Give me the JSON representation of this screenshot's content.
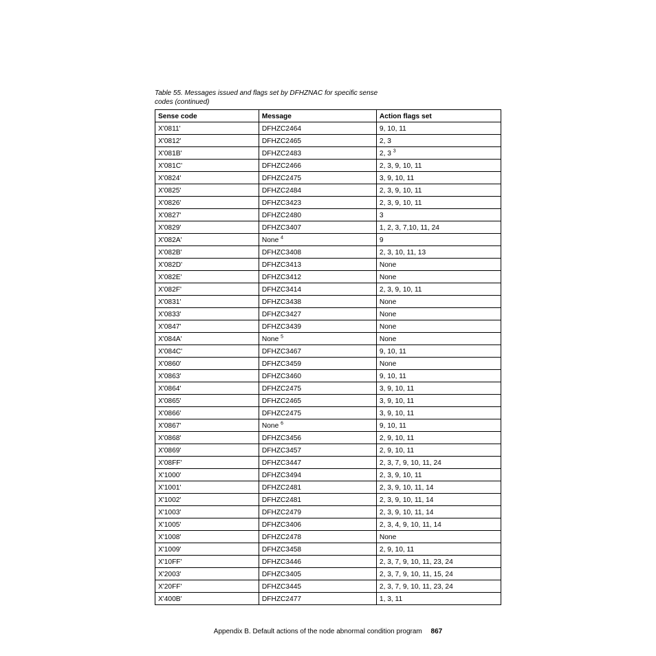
{
  "caption_line1": "Table 55. Messages issued and flags set by DFHZNAC for specific sense",
  "caption_line2": "codes (continued)",
  "headers": {
    "col1": "Sense code",
    "col2": "Message",
    "col3": "Action flags set"
  },
  "rows": [
    {
      "c1": "X'0811'",
      "c2": "DFHZC2464",
      "c3": "9, 10, 11"
    },
    {
      "c1": "X'0812'",
      "c2": "DFHZC2465",
      "c3": "2, 3"
    },
    {
      "c1": "X'081B'",
      "c2": "DFHZC2483",
      "c3": "2, 3",
      "sup3": "3"
    },
    {
      "c1": "X'081C'",
      "c2": "DFHZC2466",
      "c3": "2, 3, 9, 10, 11"
    },
    {
      "c1": "X'0824'",
      "c2": "DFHZC2475",
      "c3": "3, 9, 10, 11"
    },
    {
      "c1": "X'0825'",
      "c2": "DFHZC2484",
      "c3": "2, 3, 9, 10, 11"
    },
    {
      "c1": "X'0826'",
      "c2": "DFHZC3423",
      "c3": "2, 3, 9, 10, 11"
    },
    {
      "c1": "X'0827'",
      "c2": "DFHZC2480",
      "c3": "3"
    },
    {
      "c1": "X'0829'",
      "c2": "DFHZC3407",
      "c3": "1, 2, 3, 7,10, 11, 24"
    },
    {
      "c1": "X'082A'",
      "c2": "None",
      "sup2": "4",
      "c3": "9"
    },
    {
      "c1": "X'082B'",
      "c2": "DFHZC3408",
      "c3": "2, 3, 10, 11, 13"
    },
    {
      "c1": "X'082D'",
      "c2": "DFHZC3413",
      "c3": "None"
    },
    {
      "c1": "X'082E'",
      "c2": "DFHZC3412",
      "c3": "None"
    },
    {
      "c1": "X'082F'",
      "c2": "DFHZC3414",
      "c3": "2, 3, 9, 10, 11"
    },
    {
      "c1": "X'0831'",
      "c2": "DFHZC3438",
      "c3": "None"
    },
    {
      "c1": "X'0833'",
      "c2": "DFHZC3427",
      "c3": "None"
    },
    {
      "c1": "X'0847'",
      "c2": "DFHZC3439",
      "c3": "None"
    },
    {
      "c1": "X'084A'",
      "c2": "None",
      "sup2": "5",
      "c3": "None"
    },
    {
      "c1": "X'084C'",
      "c2": "DFHZC3467",
      "c3": "9, 10, 11"
    },
    {
      "c1": "X'0860'",
      "c2": "DFHZC3459",
      "c3": "None"
    },
    {
      "c1": "X'0863'",
      "c2": "DFHZC3460",
      "c3": "9, 10, 11"
    },
    {
      "c1": "X'0864'",
      "c2": "DFHZC2475",
      "c3": "3, 9, 10, 11"
    },
    {
      "c1": "X'0865'",
      "c2": "DFHZC2465",
      "c3": "3, 9, 10, 11"
    },
    {
      "c1": "X'0866'",
      "c2": "DFHZC2475",
      "c3": "3, 9, 10, 11"
    },
    {
      "c1": "X'0867'",
      "c2": "None",
      "sup2": "6",
      "c3": "9, 10, 11"
    },
    {
      "c1": "X'0868'",
      "c2": "DFHZC3456",
      "c3": "2, 9, 10, 11"
    },
    {
      "c1": "X'0869'",
      "c2": "DFHZC3457",
      "c3": "2, 9, 10, 11"
    },
    {
      "c1": "X'08FF'",
      "c2": "DFHZC3447",
      "c3": "2, 3, 7, 9, 10, 11, 24"
    },
    {
      "c1": "X'1000'",
      "c2": "DFHZC3494",
      "c3": "2, 3, 9, 10, 11"
    },
    {
      "c1": "X'1001'",
      "c2": "DFHZC2481",
      "c3": "2, 3, 9, 10, 11, 14"
    },
    {
      "c1": "X'1002'",
      "c2": "DFHZC2481",
      "c3": "2, 3, 9, 10, 11, 14"
    },
    {
      "c1": "X'1003'",
      "c2": "DFHZC2479",
      "c3": "2, 3, 9, 10, 11, 14"
    },
    {
      "c1": "X'1005'",
      "c2": "DFHZC3406",
      "c3": "2, 3, 4, 9, 10, 11, 14"
    },
    {
      "c1": "X'1008'",
      "c2": "DFHZC2478",
      "c3": "None"
    },
    {
      "c1": "X'1009'",
      "c2": "DFHZC3458",
      "c3": "2, 9, 10, 11"
    },
    {
      "c1": "X'10FF'",
      "c2": "DFHZC3446",
      "c3": "2, 3, 7, 9, 10, 11, 23, 24"
    },
    {
      "c1": "X'2003'",
      "c2": "DFHZC3405",
      "c3": "2, 3, 7, 9, 10, 11, 15, 24"
    },
    {
      "c1": "X'20FF'",
      "c2": "DFHZC3445",
      "c3": "2, 3, 7, 9, 10, 11, 23, 24"
    },
    {
      "c1": "X'400B'",
      "c2": "DFHZC2477",
      "c3": "1, 3, 11"
    }
  ],
  "footer_text": "Appendix B. Default actions of the node abnormal condition program",
  "page_number": "867"
}
